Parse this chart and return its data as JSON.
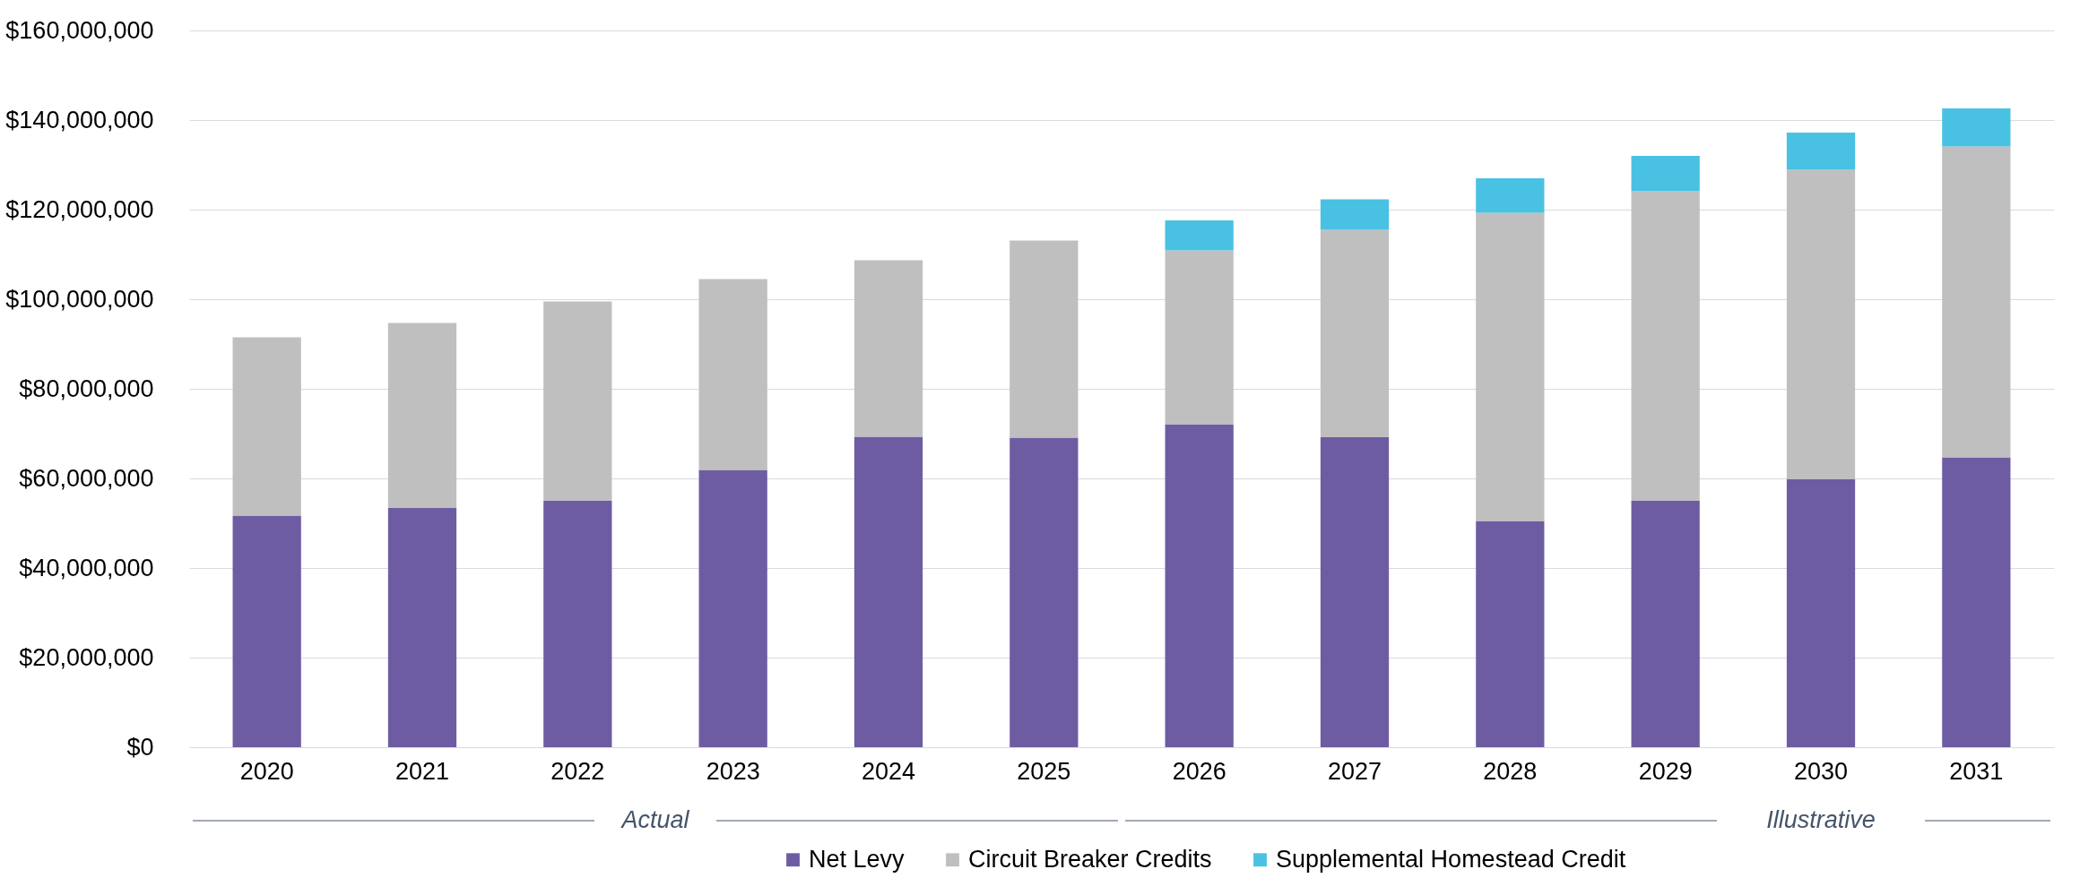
{
  "chart_data": {
    "type": "bar",
    "stacked": true,
    "categories": [
      "2020",
      "2021",
      "2022",
      "2023",
      "2024",
      "2025",
      "2026",
      "2027",
      "2028",
      "2029",
      "2030",
      "2031"
    ],
    "series": [
      {
        "name": "Net Levy",
        "color": "#6e5ca3",
        "values": [
          51700000,
          53400000,
          55000000,
          61900000,
          69300000,
          69100000,
          72000000,
          69200000,
          50500000,
          55000000,
          59800000,
          64700000
        ]
      },
      {
        "name": "Circuit Breaker Credits",
        "color": "#bfbfbf",
        "values": [
          39800000,
          41300000,
          44500000,
          42600000,
          39400000,
          44000000,
          38900000,
          46300000,
          68800000,
          69100000,
          69100000,
          69400000
        ]
      },
      {
        "name": "Supplemental Homestead Credit",
        "color": "#49c1e3",
        "values": [
          null,
          null,
          null,
          null,
          null,
          null,
          6700000,
          6800000,
          7700000,
          7900000,
          8300000,
          8500000
        ]
      }
    ],
    "ylim": [
      0,
      160000000
    ],
    "yticks": [
      {
        "value": 0,
        "label": "$0"
      },
      {
        "value": 20000000,
        "label": "$20,000,000"
      },
      {
        "value": 40000000,
        "label": "$40,000,000"
      },
      {
        "value": 60000000,
        "label": "$60,000,000"
      },
      {
        "value": 80000000,
        "label": "$80,000,000"
      },
      {
        "value": 100000000,
        "label": "$100,000,000"
      },
      {
        "value": 120000000,
        "label": "$120,000,000"
      },
      {
        "value": 140000000,
        "label": "$140,000,000"
      },
      {
        "value": 160000000,
        "label": "$160,000,000"
      }
    ],
    "grid": "y",
    "legend": "bottom",
    "annotations": [
      "Actual",
      "Illustrative"
    ]
  }
}
